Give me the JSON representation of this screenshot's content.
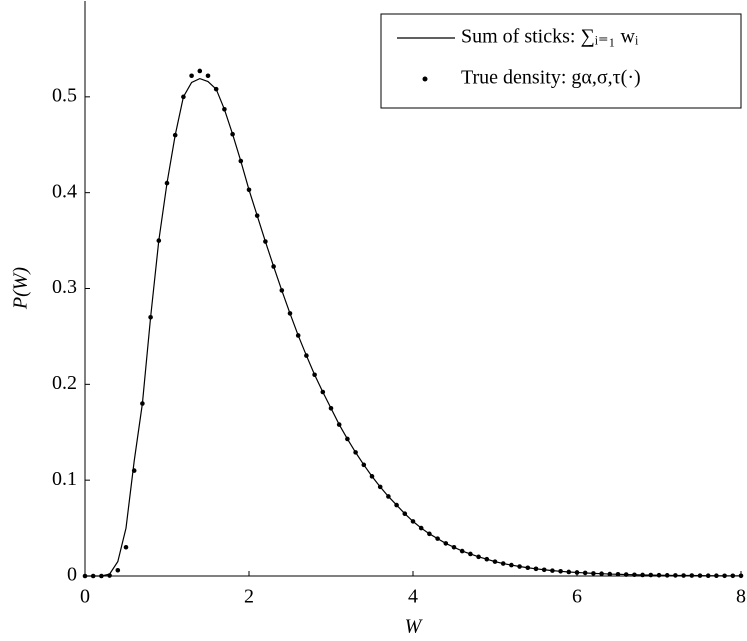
{
  "chart_data": {
    "type": "line+scatter",
    "x_label": "W",
    "y_label": "P(W)",
    "xlim": [
      0,
      8
    ],
    "ylim": [
      0,
      0.6
    ],
    "xticks": [
      0,
      2,
      4,
      6,
      8
    ],
    "yticks": [
      0,
      0.1,
      0.2,
      0.3,
      0.4,
      0.5
    ],
    "legend": "upper right",
    "x": [
      0,
      0.1,
      0.2,
      0.3,
      0.4,
      0.5,
      0.6,
      0.7,
      0.8,
      0.9,
      1,
      1.1,
      1.2,
      1.3,
      1.4,
      1.5,
      1.6,
      1.7,
      1.8,
      1.9,
      2,
      2.1,
      2.2,
      2.3,
      2.4,
      2.5,
      2.6,
      2.7,
      2.8,
      2.9,
      3,
      3.1,
      3.2,
      3.3,
      3.4,
      3.5,
      3.6,
      3.7,
      3.8,
      3.9,
      4,
      4.1,
      4.2,
      4.3,
      4.4,
      4.5,
      4.6,
      4.7,
      4.8,
      4.9,
      5,
      5.1,
      5.2,
      5.3,
      5.4,
      5.5,
      5.6,
      5.7,
      5.8,
      5.9,
      6,
      6.1,
      6.2,
      6.3,
      6.4,
      6.5,
      6.6,
      6.7,
      6.8,
      6.9,
      7,
      7.1,
      7.2,
      7.3,
      7.4,
      7.5,
      7.6,
      7.7,
      7.8,
      7.9,
      8
    ],
    "series": [
      {
        "name": "Sum of sticks: ∑ᵢ₌₁ wᵢ",
        "kind": "line",
        "color": "#000000",
        "values": [
          0,
          0,
          0,
          0.002,
          0.015,
          0.05,
          0.12,
          0.18,
          0.27,
          0.35,
          0.41,
          0.46,
          0.5,
          0.515,
          0.519,
          0.516,
          0.508,
          0.487,
          0.461,
          0.433,
          0.403,
          0.376,
          0.349,
          0.323,
          0.298,
          0.274,
          0.251,
          0.23,
          0.21,
          0.192,
          0.175,
          0.158,
          0.143,
          0.129,
          0.116,
          0.104,
          0.093,
          0.083,
          0.074,
          0.065,
          0.057,
          0.05,
          0.044,
          0.039,
          0.034,
          0.03,
          0.026,
          0.023,
          0.02,
          0.0175,
          0.015,
          0.013,
          0.0114,
          0.0099,
          0.0086,
          0.0075,
          0.0065,
          0.0056,
          0.0049,
          0.0042,
          0.0037,
          0.0032,
          0.0027,
          0.0024,
          0.002,
          0.0018,
          0.0015,
          0.0013,
          0.0011,
          0.001,
          0.0008,
          0.0007,
          0.0006,
          0.0005,
          0.0005,
          0.0004,
          0.0003,
          0.0003,
          0.0002,
          0.0002,
          0.0002
        ]
      },
      {
        "name": "True density: gα,σ,τ(·)",
        "kind": "scatter",
        "color": "#000000",
        "values": [
          0,
          0,
          0,
          0.0005,
          0.006,
          0.03,
          0.11,
          0.18,
          0.27,
          0.35,
          0.41,
          0.46,
          0.5,
          0.522,
          0.527,
          0.522,
          0.508,
          0.487,
          0.461,
          0.433,
          0.403,
          0.376,
          0.349,
          0.323,
          0.298,
          0.274,
          0.251,
          0.23,
          0.21,
          0.192,
          0.175,
          0.158,
          0.143,
          0.129,
          0.116,
          0.104,
          0.093,
          0.083,
          0.074,
          0.065,
          0.057,
          0.05,
          0.044,
          0.039,
          0.034,
          0.03,
          0.026,
          0.023,
          0.02,
          0.0175,
          0.015,
          0.013,
          0.0114,
          0.0099,
          0.0086,
          0.0075,
          0.0065,
          0.0056,
          0.0049,
          0.0042,
          0.0037,
          0.0032,
          0.0027,
          0.0024,
          0.002,
          0.0018,
          0.0015,
          0.0013,
          0.0011,
          0.001,
          0.0008,
          0.0007,
          0.0006,
          0.0005,
          0.0005,
          0.0004,
          0.0003,
          0.0003,
          0.0002,
          0.0002,
          0.0002
        ]
      }
    ]
  }
}
